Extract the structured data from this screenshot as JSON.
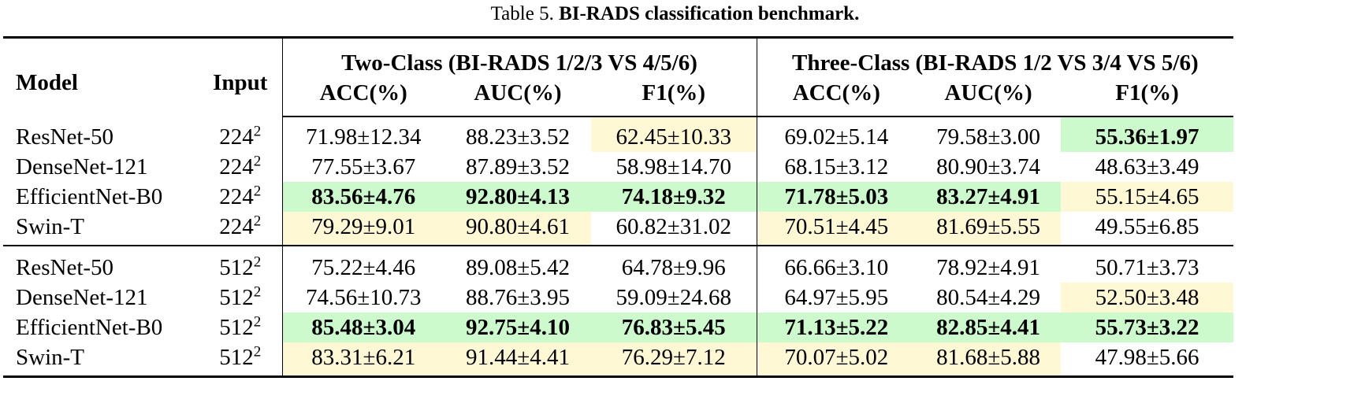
{
  "caption": {
    "prefix": "Table 5. ",
    "title": "BI-RADS classification benchmark."
  },
  "colors": {
    "green": "#ccfacc",
    "yellow": "#fff8d5"
  },
  "header": {
    "model": "Model",
    "input": "Input",
    "group1": "Two-Class (BI-RADS 1/2/3 VS 4/5/6)",
    "group2": "Three-Class (BI-RADS 1/2 VS 3/4 VS 5/6)",
    "metrics": [
      "ACC(%)",
      "AUC(%)",
      "F1(%)",
      "ACC(%)",
      "AUC(%)",
      "F1(%)"
    ]
  },
  "groups": [
    {
      "rows": [
        {
          "model": "ResNet-50",
          "input": "224",
          "exp": "2",
          "cells": [
            {
              "v": "71.98±12.34"
            },
            {
              "v": "88.23±3.52"
            },
            {
              "v": "62.45±10.33",
              "hl": "yellow"
            },
            {
              "v": "69.02±5.14"
            },
            {
              "v": "79.58±3.00"
            },
            {
              "v": "55.36±1.97",
              "hl": "green",
              "bold": true
            }
          ]
        },
        {
          "model": "DenseNet-121",
          "input": "224",
          "exp": "2",
          "cells": [
            {
              "v": "77.55±3.67"
            },
            {
              "v": "87.89±3.52"
            },
            {
              "v": "58.98±14.70"
            },
            {
              "v": "68.15±3.12"
            },
            {
              "v": "80.90±3.74"
            },
            {
              "v": "48.63±3.49"
            }
          ]
        },
        {
          "model": "EfficientNet-B0",
          "input": "224",
          "exp": "2",
          "cells": [
            {
              "v": "83.56±4.76",
              "hl": "green",
              "bold": true
            },
            {
              "v": "92.80±4.13",
              "hl": "green",
              "bold": true
            },
            {
              "v": "74.18±9.32",
              "hl": "green",
              "bold": true
            },
            {
              "v": "71.78±5.03",
              "hl": "green",
              "bold": true
            },
            {
              "v": "83.27±4.91",
              "hl": "green",
              "bold": true
            },
            {
              "v": "55.15±4.65",
              "hl": "yellow"
            }
          ]
        },
        {
          "model": "Swin-T",
          "input": "224",
          "exp": "2",
          "cells": [
            {
              "v": "79.29±9.01",
              "hl": "yellow"
            },
            {
              "v": "90.80±4.61",
              "hl": "yellow"
            },
            {
              "v": "60.82±31.02"
            },
            {
              "v": "70.51±4.45",
              "hl": "yellow"
            },
            {
              "v": "81.69±5.55",
              "hl": "yellow"
            },
            {
              "v": "49.55±6.85"
            }
          ]
        }
      ]
    },
    {
      "rows": [
        {
          "model": "ResNet-50",
          "input": "512",
          "exp": "2",
          "cells": [
            {
              "v": "75.22±4.46"
            },
            {
              "v": "89.08±5.42"
            },
            {
              "v": "64.78±9.96"
            },
            {
              "v": "66.66±3.10"
            },
            {
              "v": "78.92±4.91"
            },
            {
              "v": "50.71±3.73"
            }
          ]
        },
        {
          "model": "DenseNet-121",
          "input": "512",
          "exp": "2",
          "cells": [
            {
              "v": "74.56±10.73"
            },
            {
              "v": "88.76±3.95"
            },
            {
              "v": "59.09±24.68"
            },
            {
              "v": "64.97±5.95"
            },
            {
              "v": "80.54±4.29"
            },
            {
              "v": "52.50±3.48",
              "hl": "yellow"
            }
          ]
        },
        {
          "model": "EfficientNet-B0",
          "input": "512",
          "exp": "2",
          "cells": [
            {
              "v": "85.48±3.04",
              "hl": "green",
              "bold": true
            },
            {
              "v": "92.75±4.10",
              "hl": "green",
              "bold": true
            },
            {
              "v": "76.83±5.45",
              "hl": "green",
              "bold": true
            },
            {
              "v": "71.13±5.22",
              "hl": "green",
              "bold": true
            },
            {
              "v": "82.85±4.41",
              "hl": "green",
              "bold": true
            },
            {
              "v": "55.73±3.22",
              "hl": "green",
              "bold": true
            }
          ]
        },
        {
          "model": "Swin-T",
          "input": "512",
          "exp": "2",
          "cells": [
            {
              "v": "83.31±6.21",
              "hl": "yellow"
            },
            {
              "v": "91.44±4.41",
              "hl": "yellow"
            },
            {
              "v": "76.29±7.12",
              "hl": "yellow"
            },
            {
              "v": "70.07±5.02",
              "hl": "yellow"
            },
            {
              "v": "81.68±5.88",
              "hl": "yellow"
            },
            {
              "v": "47.98±5.66"
            }
          ]
        }
      ]
    }
  ]
}
